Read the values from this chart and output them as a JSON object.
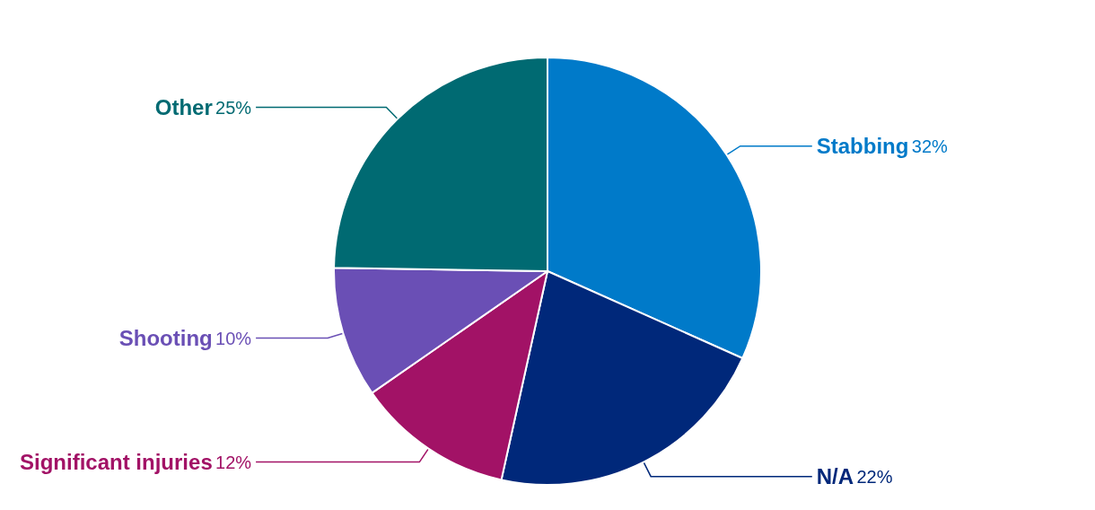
{
  "chart_data": {
    "type": "pie",
    "categories": [
      "Stabbing",
      "N/A",
      "Significant injuries",
      "Shooting",
      "Other"
    ],
    "values": [
      32,
      22,
      12,
      10,
      25
    ],
    "value_labels": [
      "32%",
      "22%",
      "12%",
      "10%",
      "25%"
    ],
    "colors": [
      "#007ac9",
      "#00287a",
      "#a21266",
      "#6a4fb5",
      "#006a72"
    ],
    "legend": false
  }
}
